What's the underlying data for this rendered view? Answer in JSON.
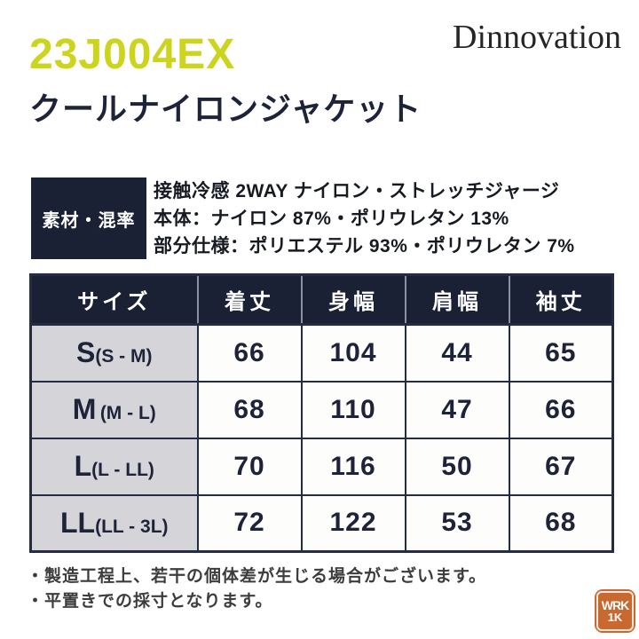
{
  "header": {
    "product_code": "23J004EX",
    "brand": "Dinnovation",
    "product_title": "クールナイロンジャケット"
  },
  "material": {
    "label": "素材・混率",
    "lines": [
      "接触冷感 2WAY ナイロン・ストレッチジャージ",
      "本体：ナイロン 87%・ポリウレタン 13%",
      "部分仕様：ポリエステル 93%・ポリウレタン 7%"
    ]
  },
  "size_table": {
    "columns": [
      "サイズ",
      "着丈",
      "身幅",
      "肩幅",
      "袖丈"
    ],
    "rows": [
      {
        "size": "S",
        "range": "(S - M)",
        "values": [
          66,
          104,
          44,
          65
        ]
      },
      {
        "size": "M",
        "range": "(M - L)",
        "values": [
          68,
          110,
          47,
          66
        ]
      },
      {
        "size": "L",
        "range": "(L - LL)",
        "values": [
          70,
          116,
          50,
          67
        ]
      },
      {
        "size": "LL",
        "range": "(LL - 3L)",
        "values": [
          72,
          122,
          53,
          68
        ]
      }
    ]
  },
  "notes": [
    "・製造工程上、若干の個体差が生じる場合がございます。",
    "・平置きでの採寸となります。"
  ],
  "logo": {
    "line1": "WRK",
    "line2": "1K"
  },
  "colors": {
    "accent_yellow_green": "#ccd41e",
    "navy": "#1b2135",
    "row_label_gray": "#d5d5d9",
    "note_gray": "#3c3c3c",
    "logo_orange": "#c9692f"
  }
}
